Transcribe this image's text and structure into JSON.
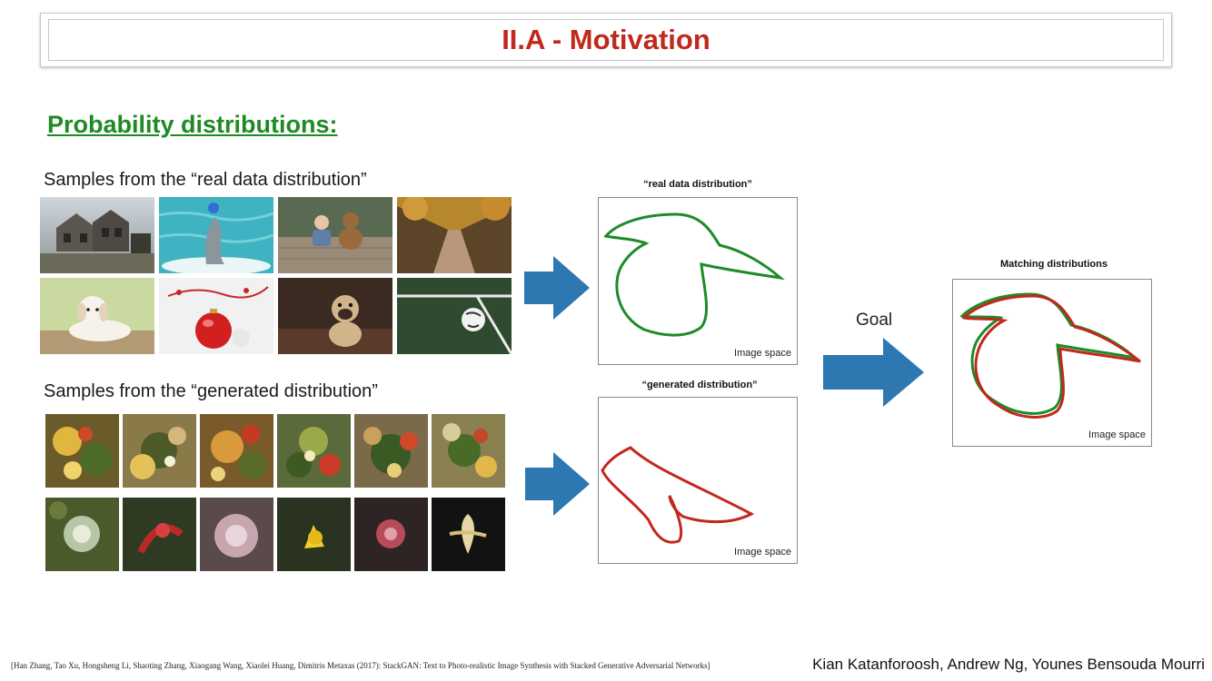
{
  "slide": {
    "title": "II.A - Motivation",
    "subtitle": "Probability distributions:",
    "real_caption": "Samples from the “real data distribution”",
    "gen_caption": "Samples from the “generated distribution”",
    "real_box_label": "“real data distribution”",
    "gen_box_label": "“generated distribution”",
    "match_box_label": "Matching distributions",
    "image_space_label": "Image space",
    "goal_label": "Goal",
    "citation": "[Han Zhang, Tao Xu, Hongsheng Li, Shaoting Zhang, Xiaogang Wang, Xiaolei Huang, Dimitris Metaxas (2017): StackGAN: Text to Photo-realistic Image Synthesis with Stacked Generative Adversarial Networks]",
    "authors": "Kian Katanforoosh, Andrew Ng, Younes Bensouda Mourri"
  },
  "colors": {
    "title_red": "#c0291c",
    "subtitle_green": "#1f8a24",
    "real_curve": "#1e8a2a",
    "gen_curve": "#c0291c",
    "arrow_blue": "#2e78b2"
  },
  "real_photos": [
    {
      "name": "haunted-house-photo"
    },
    {
      "name": "dolphin-photo"
    },
    {
      "name": "child-with-teddy-bear-photo"
    },
    {
      "name": "wooden-bridge-photo"
    },
    {
      "name": "puppy-photo"
    },
    {
      "name": "christmas-ornament-photo"
    },
    {
      "name": "pug-photo"
    },
    {
      "name": "soccer-ball-photo"
    }
  ],
  "generated_samples": [
    {
      "name": "generated-sample-1"
    },
    {
      "name": "generated-sample-2"
    },
    {
      "name": "generated-sample-3"
    },
    {
      "name": "generated-sample-4"
    },
    {
      "name": "generated-sample-5"
    },
    {
      "name": "generated-sample-6"
    },
    {
      "name": "generated-flower-1"
    },
    {
      "name": "generated-flower-2"
    },
    {
      "name": "generated-flower-3"
    },
    {
      "name": "generated-flower-4"
    },
    {
      "name": "generated-flower-5"
    },
    {
      "name": "generated-flower-6"
    }
  ]
}
